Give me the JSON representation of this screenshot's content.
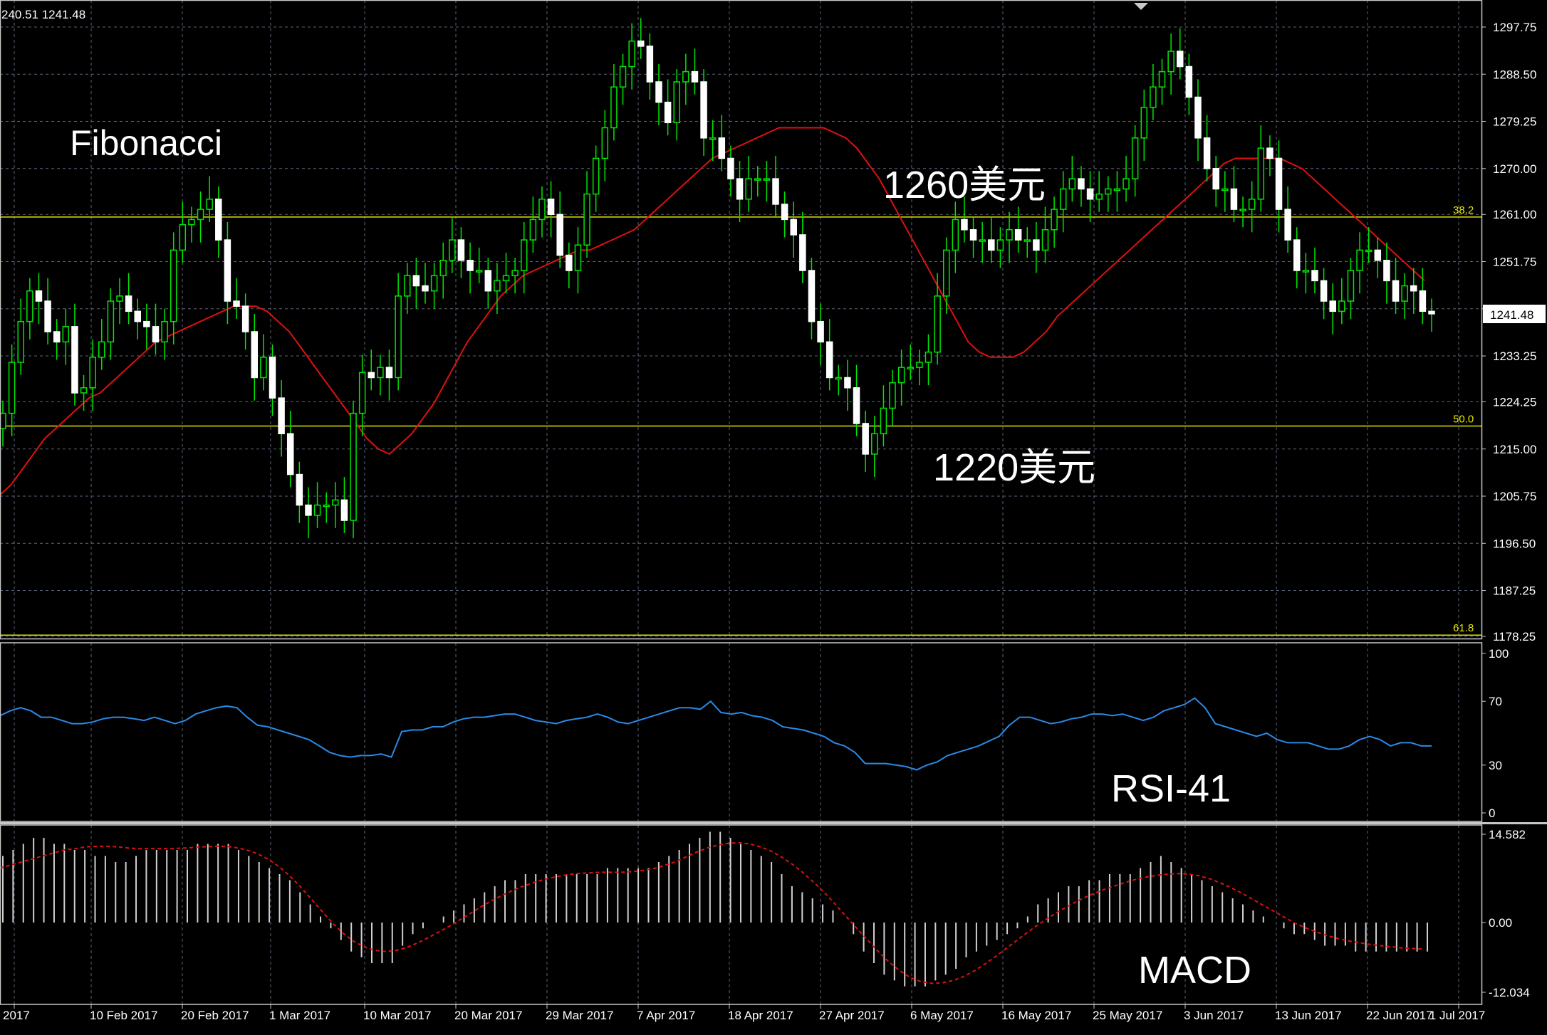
{
  "window": {
    "header_ohlc": "240.51 1241.48"
  },
  "colors": {
    "background": "#000000",
    "grid": "#5a6478",
    "bull_candle": "#00e600",
    "bear_candle": "#ffffff",
    "ma_line": "#e01010",
    "fib_line": "#e6e600",
    "rsi_line": "#2a8ae6",
    "macd_hist": "#d0d0d0",
    "macd_signal": "#e01010",
    "price_tag_bg": "#ffffff",
    "price_tag_text": "#000000"
  },
  "annotations": {
    "title": "Fibonacci",
    "level_high": "1260美元",
    "level_low": "1220美元",
    "rsi_label": "RSI-41",
    "macd_label": "MACD"
  },
  "chart_data": [
    {
      "type": "candlestick",
      "name": "price",
      "ylim": [
        1175.5,
        1303
      ],
      "y_ticks": [
        "1297.75",
        "1288.50",
        "1279.25",
        "1270.00",
        "1261.00",
        "1251.75",
        "1242.50",
        "1233.25",
        "1224.25",
        "1215.00",
        "1205.75",
        "1196.50",
        "1187.25",
        "1178.25"
      ],
      "x_ticks": [
        "2017",
        "10 Feb 2017",
        "20 Feb 2017",
        "1 Mar 2017",
        "10 Mar 2017",
        "20 Mar 2017",
        "29 Mar 2017",
        "7 Apr 2017",
        "18 Apr 2017",
        "27 Apr 2017",
        "6 May 2017",
        "16 May 2017",
        "25 May 2017",
        "3 Jun 2017",
        "13 Jun 2017",
        "22 Jun 2017",
        "1 Jul 2017"
      ],
      "current_price": "1241.48",
      "fib_levels": [
        {
          "label": "38.2",
          "value": 1260.5
        },
        {
          "label": "50.0",
          "value": 1219.5
        },
        {
          "label": "61.8",
          "value": 1178.5
        }
      ],
      "close_series": [
        1222,
        1232,
        1240,
        1246,
        1244,
        1238,
        1236,
        1239,
        1226,
        1227,
        1233,
        1236,
        1244,
        1245,
        1242,
        1240,
        1239,
        1236,
        1240,
        1254,
        1259,
        1260,
        1262,
        1264,
        1256,
        1244,
        1243,
        1238,
        1229,
        1233,
        1225,
        1218,
        1210,
        1204,
        1202,
        1204,
        1204,
        1205,
        1201,
        1222,
        1230,
        1229,
        1231,
        1229,
        1245,
        1249,
        1247,
        1246,
        1249,
        1252,
        1256,
        1252,
        1250,
        1250,
        1246,
        1248,
        1249,
        1250,
        1256,
        1260,
        1264,
        1261,
        1253,
        1250,
        1255,
        1265,
        1272,
        1278,
        1286,
        1290,
        1295,
        1294,
        1287,
        1283,
        1279,
        1287,
        1289,
        1287,
        1276,
        1276,
        1272,
        1268,
        1264,
        1268,
        1268,
        1268,
        1263,
        1260,
        1257,
        1250,
        1240,
        1236,
        1229,
        1229,
        1227,
        1220,
        1214,
        1218,
        1223,
        1228,
        1231,
        1231,
        1232,
        1234,
        1245,
        1254,
        1260,
        1258,
        1256,
        1256,
        1254,
        1256,
        1258,
        1256,
        1256,
        1254,
        1258,
        1262,
        1266,
        1268,
        1266,
        1264,
        1265,
        1266,
        1266,
        1268,
        1276,
        1282,
        1286,
        1289,
        1293,
        1290,
        1284,
        1276,
        1270,
        1266,
        1266,
        1262,
        1262,
        1264,
        1274,
        1272,
        1262,
        1256,
        1250,
        1250,
        1248,
        1244,
        1242,
        1244,
        1250,
        1254,
        1254,
        1252,
        1248,
        1244,
        1247,
        1246,
        1242,
        1241.5
      ],
      "ma_series": [
        1206,
        1208,
        1211,
        1214,
        1217,
        1219,
        1221,
        1223,
        1225,
        1226,
        1228,
        1230,
        1232,
        1234,
        1236,
        1237,
        1238,
        1239,
        1240,
        1241,
        1242,
        1243,
        1243,
        1243,
        1242,
        1240,
        1238,
        1235,
        1232,
        1229,
        1226,
        1223,
        1220,
        1217,
        1215,
        1214,
        1216,
        1218,
        1221,
        1224,
        1228,
        1232,
        1236,
        1239,
        1242,
        1245,
        1247,
        1249,
        1250,
        1251,
        1252,
        1253,
        1254,
        1254,
        1255,
        1256,
        1257,
        1258,
        1260,
        1262,
        1264,
        1266,
        1268,
        1270,
        1272,
        1273,
        1274,
        1275,
        1276,
        1277,
        1278,
        1278,
        1278,
        1278,
        1278,
        1277,
        1276,
        1274,
        1271,
        1268,
        1264,
        1260,
        1256,
        1252,
        1248,
        1244,
        1240,
        1236,
        1234,
        1233,
        1233,
        1233,
        1234,
        1236,
        1238,
        1241,
        1243,
        1245,
        1247,
        1249,
        1251,
        1253,
        1255,
        1257,
        1259,
        1261,
        1263,
        1265,
        1267,
        1269,
        1271,
        1272,
        1272,
        1272,
        1272,
        1272,
        1271,
        1270,
        1268,
        1266,
        1264,
        1262,
        1260,
        1258,
        1256,
        1254,
        1252,
        1250,
        1248
      ],
      "ma_note": ""
    },
    {
      "type": "line",
      "name": "RSI",
      "ylim": [
        0,
        100
      ],
      "y_ticks": [
        "100",
        "70",
        "30",
        "0"
      ],
      "values": [
        61,
        64,
        66,
        64,
        60,
        60,
        58,
        56,
        56,
        57,
        59,
        60,
        60,
        59,
        58,
        60,
        58,
        56,
        58,
        62,
        64,
        66,
        67,
        66,
        60,
        55,
        54,
        52,
        50,
        48,
        46,
        42,
        38,
        36,
        35,
        36,
        36,
        37,
        35,
        51,
        52,
        52,
        54,
        54,
        57,
        59,
        60,
        60,
        61,
        62,
        62,
        60,
        58,
        57,
        56,
        58,
        59,
        60,
        62,
        60,
        57,
        56,
        58,
        60,
        62,
        64,
        66,
        66,
        65,
        70,
        63,
        62,
        63,
        61,
        60,
        58,
        54,
        53,
        52,
        50,
        48,
        44,
        42,
        38,
        31,
        31,
        31,
        30,
        29,
        27,
        30,
        32,
        36,
        38,
        40,
        42,
        45,
        48,
        55,
        60,
        60,
        58,
        56,
        57,
        59,
        60,
        62,
        62,
        61,
        62,
        60,
        58,
        60,
        64,
        66,
        68,
        72,
        66,
        56,
        54,
        52,
        50,
        48,
        50,
        46,
        44,
        44,
        44,
        42,
        40,
        40,
        42,
        46,
        48,
        46,
        42,
        44,
        44,
        42,
        42
      ]
    },
    {
      "type": "bar",
      "name": "MACD",
      "ylim": [
        -12.034,
        14.582
      ],
      "y_ticks": [
        "14.582",
        "0.00",
        "-12.034"
      ],
      "histogram": [
        11,
        12,
        13,
        14,
        14,
        13,
        13,
        12,
        12,
        11,
        11,
        10,
        10,
        11,
        12,
        12,
        12,
        12,
        12,
        13,
        13,
        13,
        13,
        12,
        11,
        10,
        9,
        8,
        7,
        5,
        3,
        1,
        -1,
        -3,
        -5,
        -6,
        -7,
        -7,
        -7,
        -4,
        -2,
        -1,
        0,
        1,
        2,
        3,
        4,
        5,
        6,
        7,
        7,
        8,
        8,
        8,
        8,
        8,
        8,
        8,
        8,
        9,
        9,
        9,
        9,
        9,
        10,
        11,
        12,
        13,
        14,
        15,
        15,
        14,
        13,
        12,
        11,
        10,
        8,
        6,
        5,
        4,
        3,
        2,
        0,
        -2,
        -5,
        -7,
        -9,
        -10,
        -11,
        -11,
        -11,
        -10,
        -9,
        -8,
        -6,
        -5,
        -4,
        -3,
        -2,
        -1,
        1,
        3,
        4,
        5,
        6,
        6,
        7,
        7,
        8,
        8,
        8,
        9,
        10,
        11,
        10,
        9,
        8,
        7,
        6,
        5,
        4,
        3,
        2,
        1,
        0,
        -1,
        -2,
        -2,
        -3,
        -4,
        -4,
        -4,
        -5,
        -5,
        -5,
        -5,
        -5,
        -5,
        -5,
        -5
      ],
      "signal": [
        9,
        9.5,
        10,
        10.5,
        11,
        11.5,
        12,
        12.2,
        12.5,
        12.6,
        12.6,
        12.5,
        12.3,
        12.2,
        12.2,
        12.2,
        12.2,
        12.3,
        12.4,
        12.5,
        12.6,
        12.6,
        12.4,
        12,
        11.4,
        10.5,
        9.3,
        7.8,
        6,
        4,
        2,
        0,
        -1.8,
        -3.2,
        -4.2,
        -4.8,
        -5,
        -4.8,
        -4.3,
        -3.5,
        -2.6,
        -1.6,
        -0.6,
        0.5,
        1.6,
        2.7,
        3.7,
        4.6,
        5.4,
        6.1,
        6.7,
        7.2,
        7.6,
        7.9,
        8.1,
        8.2,
        8.3,
        8.3,
        8.3,
        8.4,
        8.6,
        8.9,
        9.4,
        10,
        10.8,
        11.6,
        12.3,
        12.8,
        13.1,
        13.2,
        13,
        12.5,
        11.8,
        10.8,
        9.6,
        8.2,
        6.6,
        4.9,
        3,
        1,
        -1,
        -3,
        -5,
        -6.8,
        -8.3,
        -9.5,
        -10.2,
        -10.5,
        -10.4,
        -10,
        -9.3,
        -8.3,
        -7.1,
        -5.8,
        -4.4,
        -3,
        -1.6,
        -0.3,
        0.9,
        2,
        3,
        3.9,
        4.7,
        5.4,
        6,
        6.6,
        7.1,
        7.5,
        7.8,
        8,
        8.1,
        8,
        7.7,
        7.2,
        6.5,
        5.7,
        4.8,
        3.8,
        2.8,
        1.8,
        0.8,
        -0.2,
        -1,
        -1.7,
        -2.3,
        -2.8,
        -3.2,
        -3.5,
        -3.8,
        -4,
        -4.2,
        -4.4,
        -4.5,
        -4.6
      ]
    }
  ]
}
